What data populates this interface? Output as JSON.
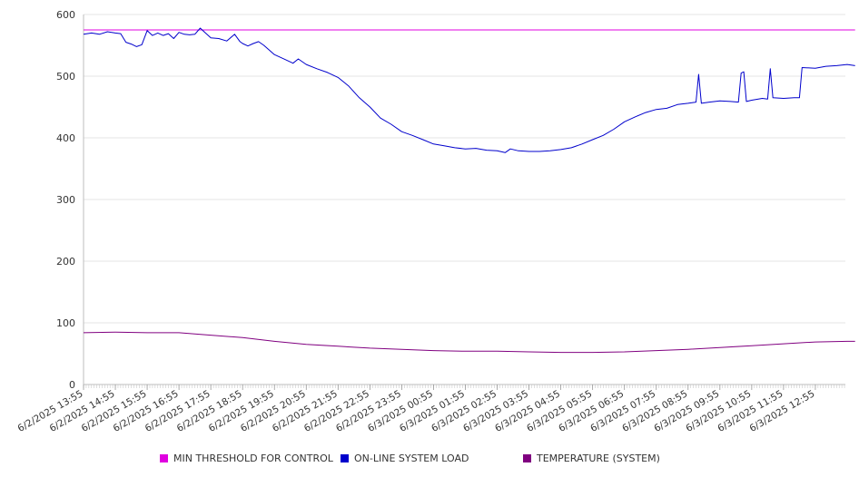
{
  "chart_data": {
    "type": "line",
    "title": "",
    "xlabel": "",
    "ylabel": "",
    "ylim": [
      0,
      600
    ],
    "y_ticks": [
      0,
      100,
      200,
      300,
      400,
      500,
      600
    ],
    "grid": true,
    "legend_position": "bottom",
    "x_tick_labels": [
      "6/2/2025 13:55",
      "6/2/2025 14:55",
      "6/2/2025 15:55",
      "6/2/2025 16:55",
      "6/2/2025 17:55",
      "6/2/2025 18:55",
      "6/2/2025 19:55",
      "6/2/2025 20:55",
      "6/2/2025 21:55",
      "6/2/2025 22:55",
      "6/2/2025 23:55",
      "6/3/2025 00:55",
      "6/3/2025 01:55",
      "6/3/2025 02:55",
      "6/3/2025 03:55",
      "6/3/2025 04:55",
      "6/3/2025 05:55",
      "6/3/2025 06:55",
      "6/3/2025 07:55",
      "6/3/2025 08:55",
      "6/3/2025 09:55",
      "6/3/2025 10:55",
      "6/3/2025 11:55",
      "6/3/2025 12:55"
    ],
    "series": [
      {
        "name": "MIN THRESHOLD FOR CONTROL",
        "color": "#e000e0",
        "points": [
          [
            "6/2/2025 13:55",
            575
          ],
          [
            "6/3/2025 14:10",
            575
          ]
        ]
      },
      {
        "name": "ON-LINE SYSTEM LOAD",
        "color": "#0000cc",
        "points": [
          [
            "6/2/2025 13:55",
            568
          ],
          [
            "6/2/2025 14:10",
            570
          ],
          [
            "6/2/2025 14:25",
            568
          ],
          [
            "6/2/2025 14:40",
            572
          ],
          [
            "6/2/2025 14:55",
            570
          ],
          [
            "6/2/2025 15:05",
            569
          ],
          [
            "6/2/2025 15:15",
            555
          ],
          [
            "6/2/2025 15:25",
            552
          ],
          [
            "6/2/2025 15:35",
            548
          ],
          [
            "6/2/2025 15:45",
            551
          ],
          [
            "6/2/2025 15:55",
            574
          ],
          [
            "6/2/2025 16:05",
            566
          ],
          [
            "6/2/2025 16:15",
            570
          ],
          [
            "6/2/2025 16:25",
            566
          ],
          [
            "6/2/2025 16:35",
            569
          ],
          [
            "6/2/2025 16:45",
            561
          ],
          [
            "6/2/2025 16:55",
            571
          ],
          [
            "6/2/2025 17:05",
            568
          ],
          [
            "6/2/2025 17:15",
            567
          ],
          [
            "6/2/2025 17:25",
            568
          ],
          [
            "6/2/2025 17:35",
            578
          ],
          [
            "6/2/2025 17:45",
            570
          ],
          [
            "6/2/2025 17:55",
            562
          ],
          [
            "6/2/2025 18:10",
            561
          ],
          [
            "6/2/2025 18:25",
            557
          ],
          [
            "6/2/2025 18:40",
            568
          ],
          [
            "6/2/2025 18:50",
            556
          ],
          [
            "6/2/2025 18:55",
            553
          ],
          [
            "6/2/2025 19:05",
            549
          ],
          [
            "6/2/2025 19:15",
            553
          ],
          [
            "6/2/2025 19:25",
            556
          ],
          [
            "6/2/2025 19:35",
            550
          ],
          [
            "6/2/2025 19:55",
            535
          ],
          [
            "6/2/2025 20:15",
            527
          ],
          [
            "6/2/2025 20:30",
            521
          ],
          [
            "6/2/2025 20:40",
            528
          ],
          [
            "6/2/2025 20:55",
            519
          ],
          [
            "6/2/2025 21:15",
            512
          ],
          [
            "6/2/2025 21:35",
            506
          ],
          [
            "6/2/2025 21:55",
            498
          ],
          [
            "6/2/2025 22:15",
            484
          ],
          [
            "6/2/2025 22:35",
            465
          ],
          [
            "6/2/2025 22:55",
            450
          ],
          [
            "6/2/2025 23:15",
            432
          ],
          [
            "6/2/2025 23:35",
            422
          ],
          [
            "6/2/2025 23:55",
            410
          ],
          [
            "6/3/2025 00:15",
            404
          ],
          [
            "6/3/2025 00:35",
            397
          ],
          [
            "6/3/2025 00:55",
            390
          ],
          [
            "6/3/2025 01:15",
            387
          ],
          [
            "6/3/2025 01:35",
            384
          ],
          [
            "6/3/2025 01:55",
            382
          ],
          [
            "6/3/2025 02:15",
            383
          ],
          [
            "6/3/2025 02:35",
            380
          ],
          [
            "6/3/2025 02:55",
            379
          ],
          [
            "6/3/2025 03:10",
            376
          ],
          [
            "6/3/2025 03:20",
            382
          ],
          [
            "6/3/2025 03:35",
            379
          ],
          [
            "6/3/2025 03:55",
            378
          ],
          [
            "6/3/2025 04:15",
            378
          ],
          [
            "6/3/2025 04:35",
            379
          ],
          [
            "6/3/2025 04:55",
            381
          ],
          [
            "6/3/2025 05:15",
            384
          ],
          [
            "6/3/2025 05:35",
            390
          ],
          [
            "6/3/2025 05:55",
            397
          ],
          [
            "6/3/2025 06:15",
            404
          ],
          [
            "6/3/2025 06:35",
            414
          ],
          [
            "6/3/2025 06:55",
            426
          ],
          [
            "6/3/2025 07:15",
            434
          ],
          [
            "6/3/2025 07:35",
            441
          ],
          [
            "6/3/2025 07:55",
            446
          ],
          [
            "6/3/2025 08:15",
            448
          ],
          [
            "6/3/2025 08:35",
            454
          ],
          [
            "6/3/2025 08:55",
            456
          ],
          [
            "6/3/2025 09:10",
            458
          ],
          [
            "6/3/2025 09:15",
            503
          ],
          [
            "6/3/2025 09:20",
            456
          ],
          [
            "6/3/2025 09:35",
            458
          ],
          [
            "6/3/2025 09:55",
            460
          ],
          [
            "6/3/2025 10:15",
            459
          ],
          [
            "6/3/2025 10:30",
            458
          ],
          [
            "6/3/2025 10:35",
            505
          ],
          [
            "6/3/2025 10:40",
            507
          ],
          [
            "6/3/2025 10:45",
            459
          ],
          [
            "6/3/2025 10:55",
            461
          ],
          [
            "6/3/2025 11:15",
            464
          ],
          [
            "6/3/2025 11:25",
            463
          ],
          [
            "6/3/2025 11:30",
            512
          ],
          [
            "6/3/2025 11:35",
            465
          ],
          [
            "6/3/2025 11:55",
            464
          ],
          [
            "6/3/2025 12:15",
            465
          ],
          [
            "6/3/2025 12:25",
            465
          ],
          [
            "6/3/2025 12:30",
            514
          ],
          [
            "6/3/2025 12:55",
            513
          ],
          [
            "6/3/2025 13:15",
            516
          ],
          [
            "6/3/2025 13:35",
            517
          ],
          [
            "6/3/2025 13:55",
            519
          ],
          [
            "6/3/2025 14:10",
            517
          ]
        ]
      },
      {
        "name": "TEMPERATURE (SYSTEM)",
        "color": "#800080",
        "points": [
          [
            "6/2/2025 13:55",
            84
          ],
          [
            "6/2/2025 14:55",
            85
          ],
          [
            "6/2/2025 15:55",
            84
          ],
          [
            "6/2/2025 16:55",
            84
          ],
          [
            "6/2/2025 17:55",
            80
          ],
          [
            "6/2/2025 18:55",
            76
          ],
          [
            "6/2/2025 19:55",
            70
          ],
          [
            "6/2/2025 20:55",
            65
          ],
          [
            "6/2/2025 21:55",
            62
          ],
          [
            "6/2/2025 22:55",
            59
          ],
          [
            "6/2/2025 23:55",
            57
          ],
          [
            "6/3/2025 00:55",
            55
          ],
          [
            "6/3/2025 01:55",
            54
          ],
          [
            "6/3/2025 02:55",
            54
          ],
          [
            "6/3/2025 03:55",
            53
          ],
          [
            "6/3/2025 04:55",
            52
          ],
          [
            "6/3/2025 05:55",
            52
          ],
          [
            "6/3/2025 06:55",
            53
          ],
          [
            "6/3/2025 07:55",
            55
          ],
          [
            "6/3/2025 08:55",
            57
          ],
          [
            "6/3/2025 09:55",
            60
          ],
          [
            "6/3/2025 10:55",
            63
          ],
          [
            "6/3/2025 11:55",
            66
          ],
          [
            "6/3/2025 12:55",
            69
          ],
          [
            "6/3/2025 13:55",
            70
          ],
          [
            "6/3/2025 14:10",
            70
          ]
        ]
      }
    ]
  }
}
